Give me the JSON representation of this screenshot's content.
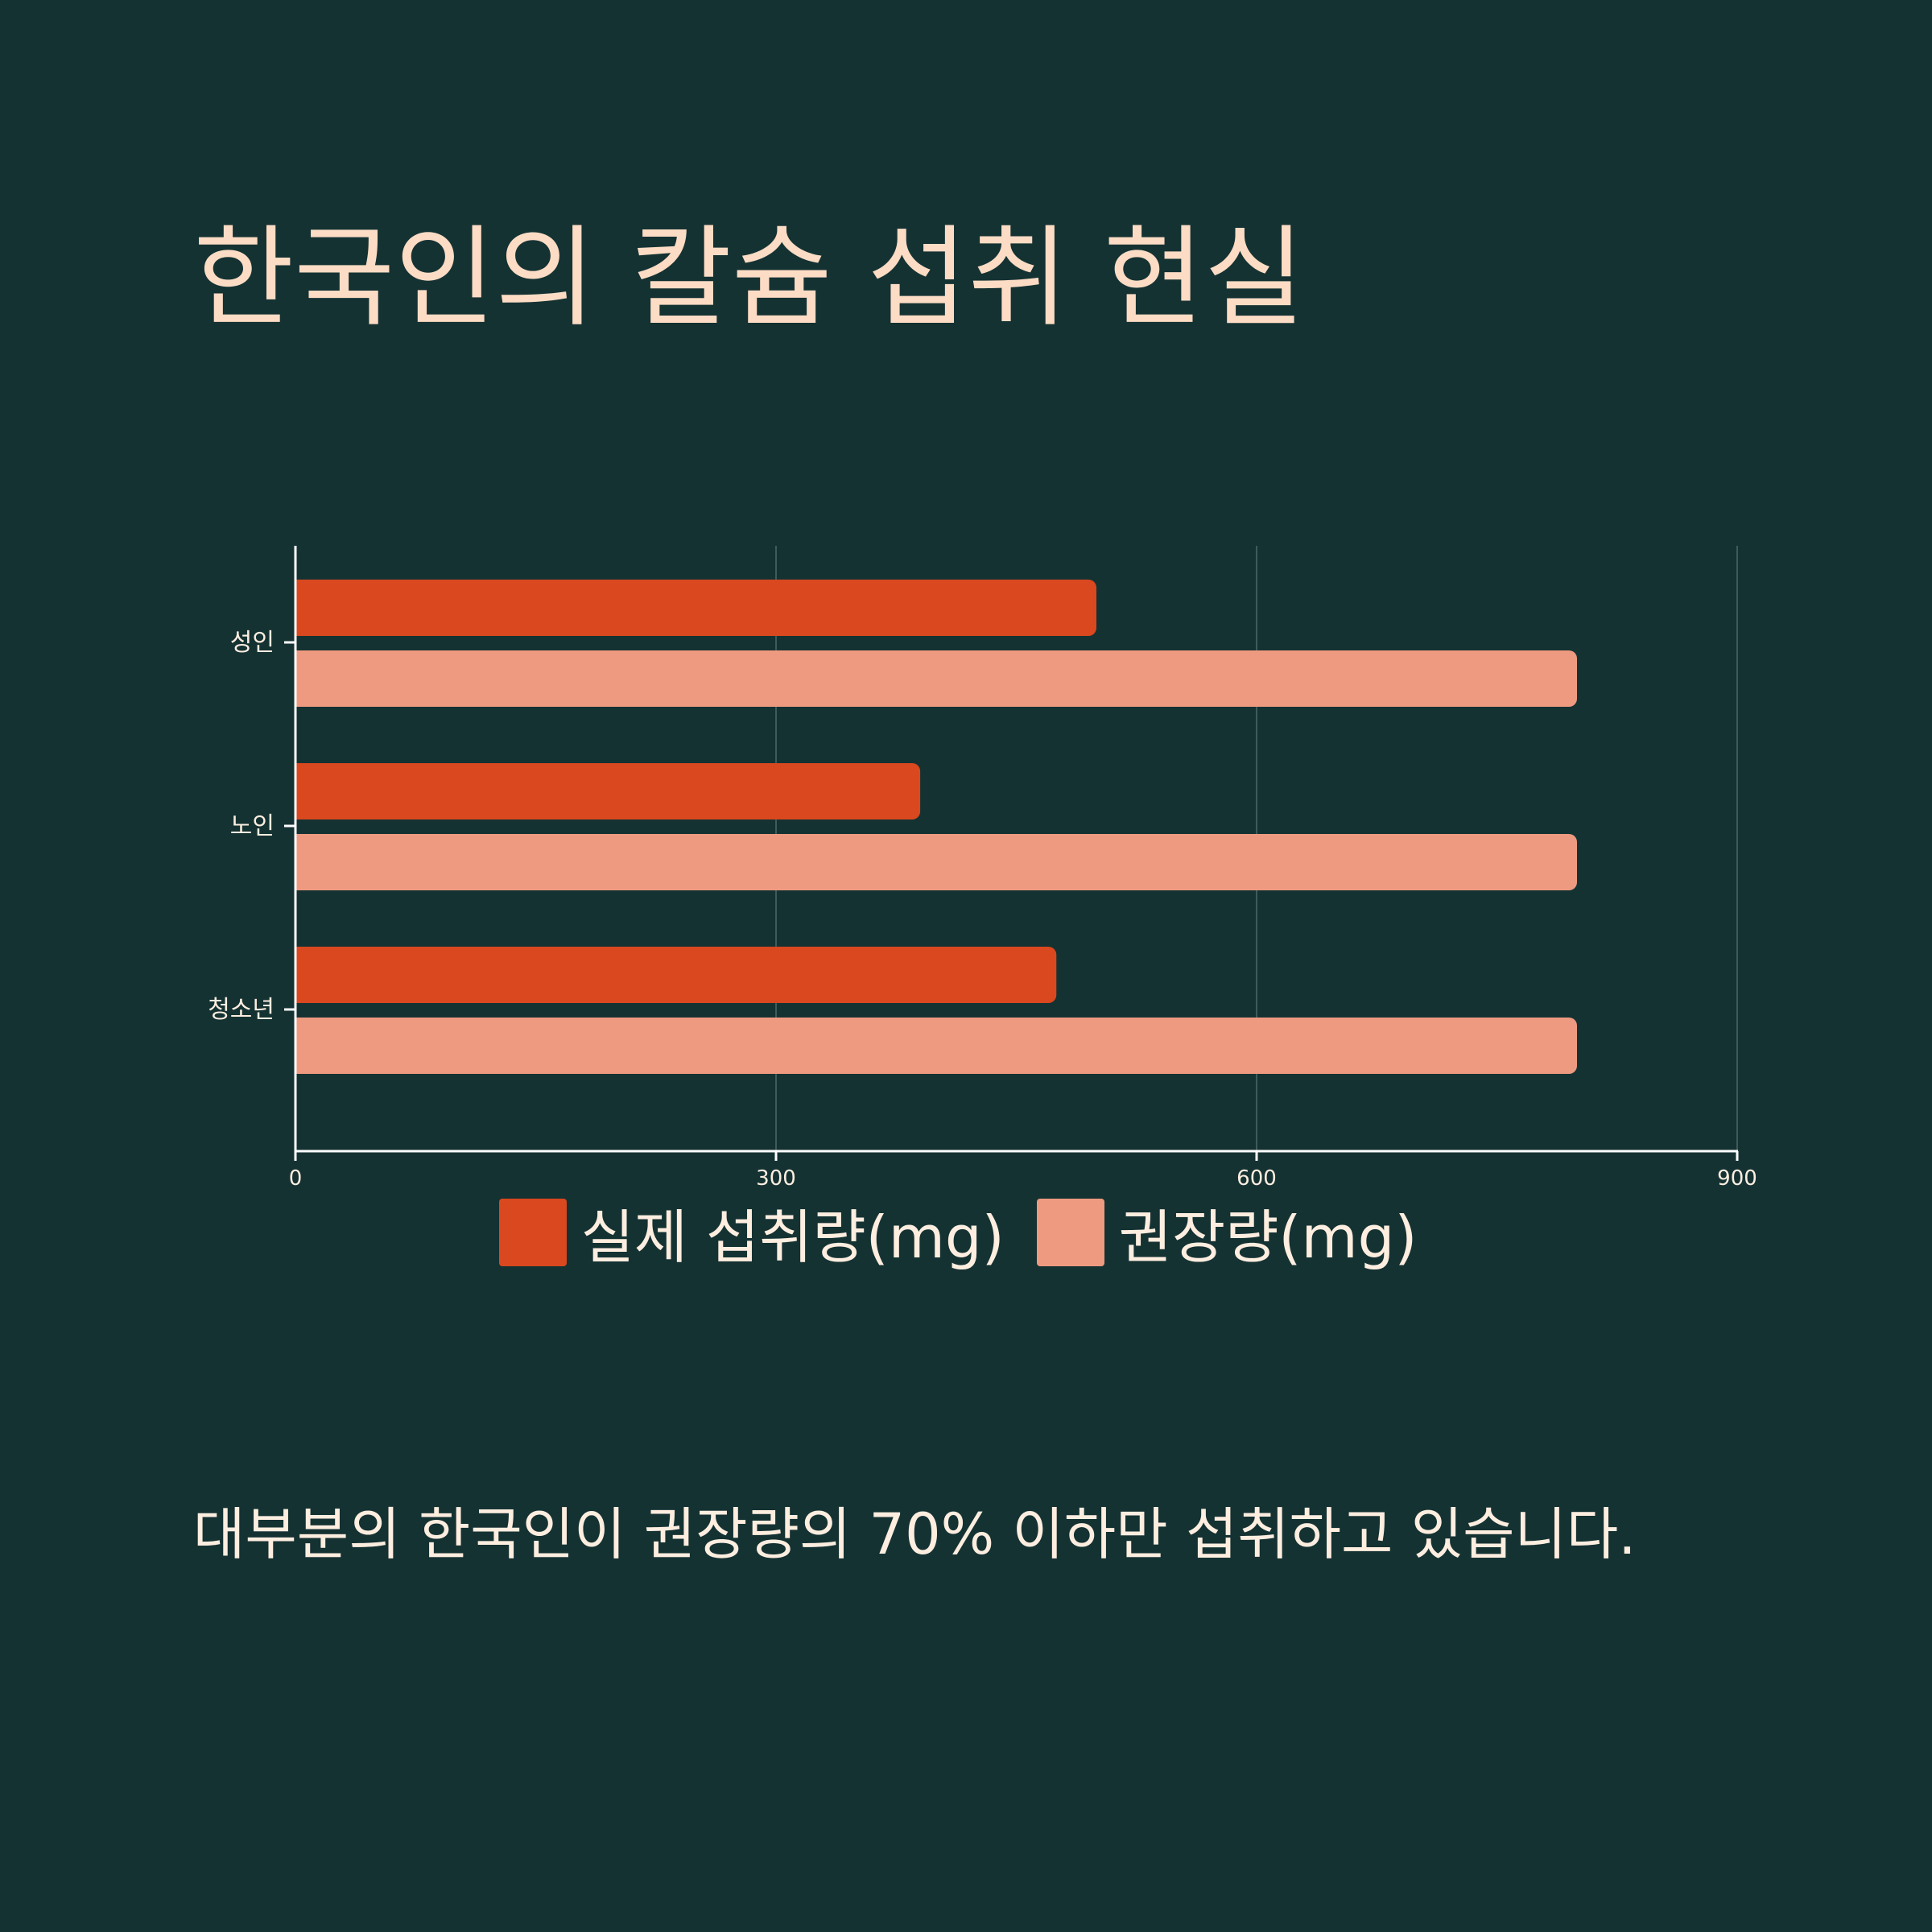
{
  "title": "한국인의 칼슘 섭취 현실",
  "caption": "대부분의 한국인이 권장량의 70% 이하만 섭취하고 있습니다.",
  "colors": {
    "background": "#153233",
    "title": "#fcdcc4",
    "text": "#fdeee0",
    "actual": "#d9481e",
    "recommended": "#ee9a80",
    "axis": "#ffffff",
    "grid": "#3f5a5a"
  },
  "chart_data": {
    "type": "bar",
    "orientation": "horizontal",
    "categories": [
      "성인",
      "노인",
      "청소년"
    ],
    "series": [
      {
        "name": "실제 섭취량(mg)",
        "values": [
          500,
          390,
          475
        ],
        "color": "#d9481e"
      },
      {
        "name": "권장량(mg)",
        "values": [
          800,
          800,
          800
        ],
        "color": "#ee9a80"
      }
    ],
    "xlim": [
      0,
      900
    ],
    "xticks": [
      0,
      300,
      600,
      900
    ],
    "grid": true,
    "legend_position": "bottom"
  }
}
